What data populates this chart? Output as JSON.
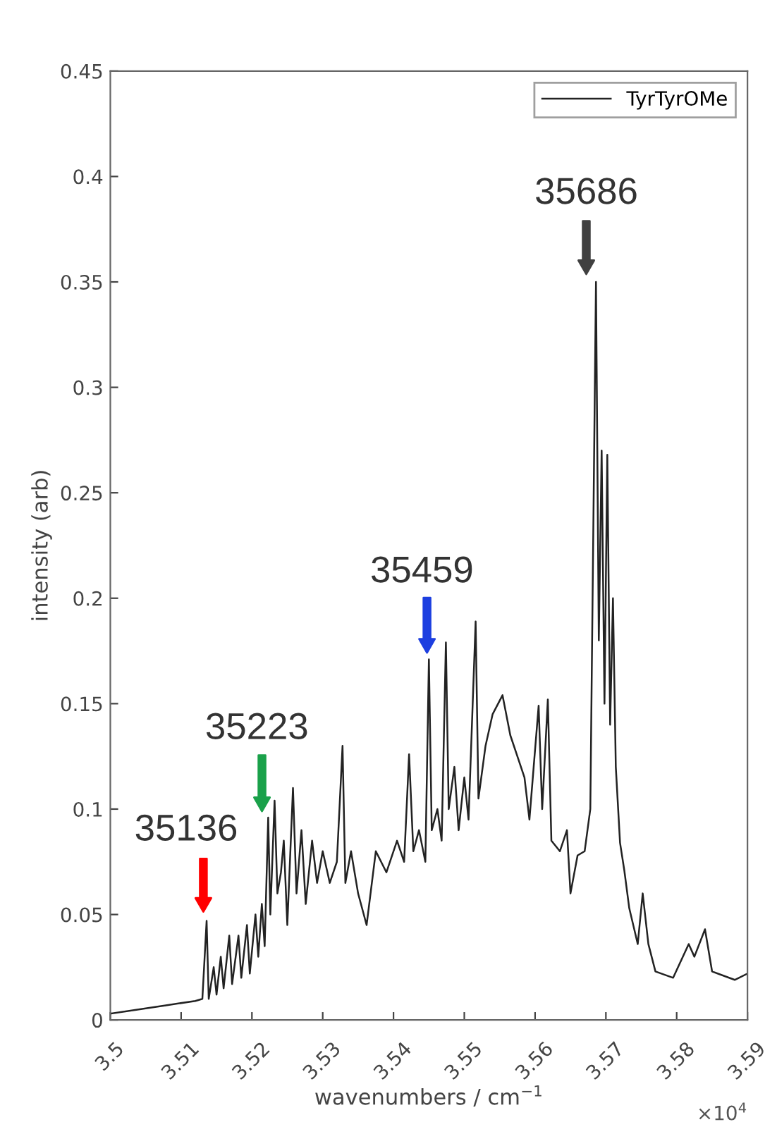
{
  "chart_data": {
    "type": "line",
    "xlabel": "wavenumbers / cm$^{−1}$",
    "ylabel": "intensity (arb)",
    "xlim": [
      3.5,
      3.59
    ],
    "ylim": [
      0,
      0.45
    ],
    "xticks": [
      3.5,
      3.51,
      3.52,
      3.53,
      3.54,
      3.55,
      3.56,
      3.57,
      3.58,
      3.59
    ],
    "yticks": [
      0,
      0.05,
      0.1,
      0.15,
      0.2,
      0.25,
      0.3,
      0.35,
      0.4,
      0.45
    ],
    "legend": "top right",
    "grid": false,
    "series": [
      {
        "name": "TyrTyrOMe",
        "color": "#222222",
        "x": [
          3.5,
          3.504,
          3.508,
          3.512,
          3.513,
          3.5136,
          3.5139,
          3.5146,
          3.515,
          3.5156,
          3.516,
          3.5168,
          3.5172,
          3.5181,
          3.5185,
          3.5193,
          3.5197,
          3.5205,
          3.5209,
          3.5214,
          3.5218,
          3.5223,
          3.5226,
          3.5232,
          3.5236,
          3.5241,
          3.5245,
          3.525,
          3.5258,
          3.5263,
          3.527,
          3.5276,
          3.5285,
          3.5292,
          3.53,
          3.531,
          3.532,
          3.5328,
          3.5332,
          3.534,
          3.535,
          3.5362,
          3.5375,
          3.539,
          3.5405,
          3.5415,
          3.5422,
          3.5428,
          3.5436,
          3.5445,
          3.545,
          3.5454,
          3.5462,
          3.5468,
          3.5474,
          3.5478,
          3.5486,
          3.5492,
          3.55,
          3.5506,
          3.5516,
          3.552,
          3.553,
          3.554,
          3.5554,
          3.5565,
          3.5575,
          3.5585,
          3.5592,
          3.5598,
          3.5605,
          3.561,
          3.5618,
          3.5623,
          3.5635,
          3.5645,
          3.565,
          3.566,
          3.567,
          3.5678,
          3.5686,
          3.569,
          3.5694,
          3.5698,
          3.5702,
          3.5706,
          3.571,
          3.5714,
          3.572,
          3.5726,
          3.5733,
          3.5745,
          3.5752,
          3.576,
          3.577,
          3.5795,
          3.5817,
          3.5825,
          3.584,
          3.585,
          3.5882,
          3.59
        ],
        "values": [
          0.003,
          0.005,
          0.007,
          0.009,
          0.01,
          0.047,
          0.01,
          0.025,
          0.012,
          0.03,
          0.015,
          0.04,
          0.017,
          0.04,
          0.02,
          0.045,
          0.022,
          0.05,
          0.03,
          0.055,
          0.035,
          0.096,
          0.05,
          0.104,
          0.06,
          0.07,
          0.085,
          0.045,
          0.11,
          0.06,
          0.09,
          0.055,
          0.085,
          0.065,
          0.08,
          0.065,
          0.075,
          0.13,
          0.065,
          0.08,
          0.06,
          0.045,
          0.08,
          0.07,
          0.085,
          0.075,
          0.126,
          0.08,
          0.09,
          0.075,
          0.171,
          0.09,
          0.1,
          0.085,
          0.179,
          0.1,
          0.12,
          0.09,
          0.115,
          0.095,
          0.189,
          0.105,
          0.13,
          0.145,
          0.154,
          0.135,
          0.125,
          0.115,
          0.095,
          0.12,
          0.149,
          0.1,
          0.152,
          0.085,
          0.08,
          0.09,
          0.06,
          0.078,
          0.08,
          0.1,
          0.35,
          0.18,
          0.27,
          0.15,
          0.268,
          0.14,
          0.2,
          0.12,
          0.084,
          0.071,
          0.053,
          0.036,
          0.06,
          0.036,
          0.023,
          0.02,
          0.036,
          0.03,
          0.043,
          0.023,
          0.019,
          0.022
        ]
      }
    ],
    "annotations": [
      "35136",
      "35223",
      "35459",
      "35686",
      "×10$^{4}$"
    ]
  }
}
